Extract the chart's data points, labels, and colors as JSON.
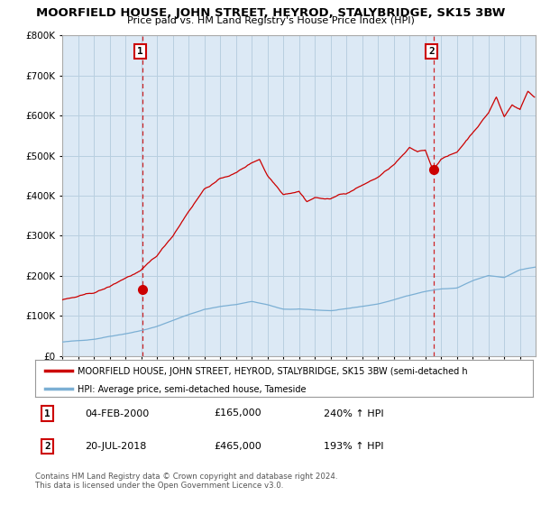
{
  "title": "MOORFIELD HOUSE, JOHN STREET, HEYROD, STALYBRIDGE, SK15 3BW",
  "subtitle": "Price paid vs. HM Land Registry's House Price Index (HPI)",
  "red_line_label": "MOORFIELD HOUSE, JOHN STREET, HEYROD, STALYBRIDGE, SK15 3BW (semi-detached h",
  "blue_line_label": "HPI: Average price, semi-detached house, Tameside",
  "sale1_date": 2000.09,
  "sale1_label": "1",
  "sale1_price": 165000,
  "sale1_text": "04-FEB-2000",
  "sale1_pct": "240% ↑ HPI",
  "sale2_date": 2018.55,
  "sale2_label": "2",
  "sale2_price": 465000,
  "sale2_text": "20-JUL-2018",
  "sale2_pct": "193% ↑ HPI",
  "footer1": "Contains HM Land Registry data © Crown copyright and database right 2024.",
  "footer2": "This data is licensed under the Open Government Licence v3.0.",
  "red_color": "#cc0000",
  "blue_color": "#7bafd4",
  "dashed_color": "#cc0000",
  "plot_bg_color": "#dce9f5",
  "background_color": "#ffffff",
  "grid_color": "#b8cfe0",
  "ylim": [
    0,
    800000
  ],
  "xlim_start": 1995.0,
  "xlim_end": 2024.99
}
